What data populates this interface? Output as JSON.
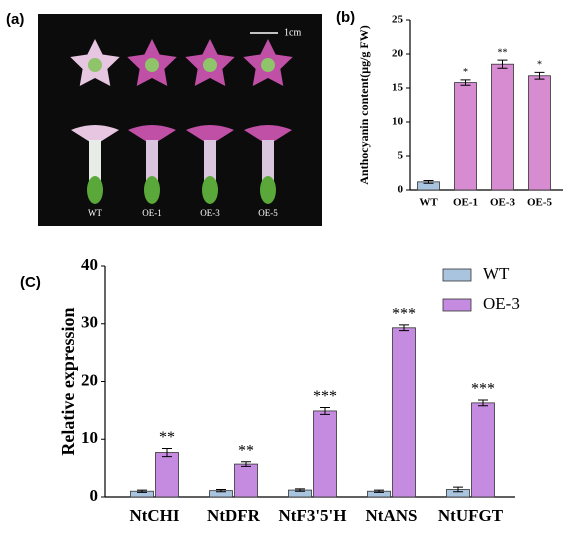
{
  "photo": {
    "panel_label": "(a)",
    "scale_bar": "1cm",
    "labels": [
      "WT",
      "OE-1",
      "OE-3",
      "OE-5"
    ]
  },
  "chart_data": [
    {
      "type": "bar",
      "panel_label": "(b)",
      "ylabel": "Anthocyanin content(μg/g FW)",
      "categories": [
        "WT",
        "OE-1",
        "OE-3",
        "OE-5"
      ],
      "values": [
        1.2,
        15.8,
        18.5,
        16.8
      ],
      "errors": [
        0.2,
        0.4,
        0.6,
        0.5
      ],
      "annotations": [
        null,
        "*",
        "**",
        "*"
      ],
      "colors": [
        "#a9c4de",
        "#d78bd0",
        "#d78bd0",
        "#d78bd0"
      ],
      "ylim": [
        0,
        25
      ],
      "yticks": [
        0,
        5,
        10,
        15,
        20,
        25
      ]
    },
    {
      "type": "bar",
      "panel_label": "(C)",
      "ylabel": "Relative expression",
      "categories": [
        "NtCHI",
        "NtDFR",
        "NtF3'5'H",
        "NtANS",
        "NtUFGT"
      ],
      "series": [
        {
          "name": "WT",
          "color": "#a9c4de",
          "values": [
            1.0,
            1.1,
            1.2,
            1.0,
            1.3
          ],
          "errors": [
            0.2,
            0.2,
            0.2,
            0.2,
            0.4
          ]
        },
        {
          "name": "OE-3",
          "color": "#c58be0",
          "values": [
            7.7,
            5.7,
            14.9,
            29.3,
            16.3
          ],
          "errors": [
            0.7,
            0.4,
            0.6,
            0.5,
            0.5
          ],
          "annotations": [
            "**",
            "**",
            "***",
            "***",
            "***"
          ]
        }
      ],
      "ylim": [
        0,
        40
      ],
      "yticks": [
        0,
        10,
        20,
        30,
        40
      ],
      "legend": "top-right"
    }
  ]
}
